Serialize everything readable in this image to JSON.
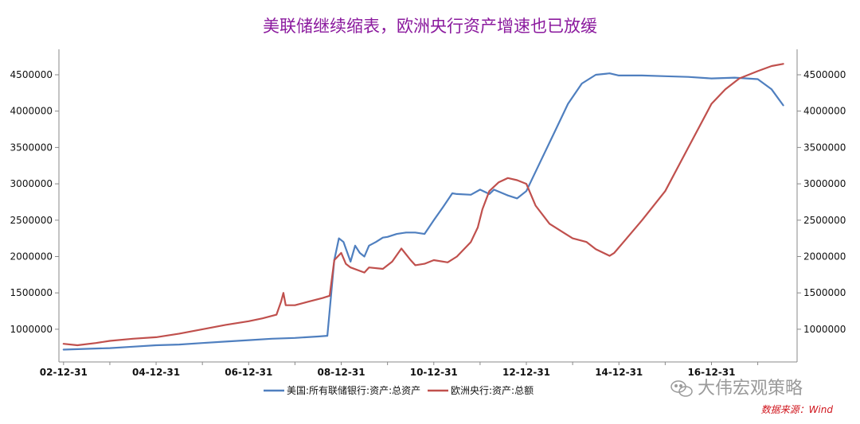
{
  "chart_data": {
    "type": "line",
    "title": "美联储继续缩表，欧洲央行资产增速也已放缓",
    "xlabel": "",
    "ylabel": "",
    "x_ticks": [
      "02-12-31",
      "04-12-31",
      "06-12-31",
      "08-12-31",
      "10-12-31",
      "12-12-31",
      "14-12-31",
      "16-12-31"
    ],
    "y_ticks": [
      1000000,
      1500000,
      2000000,
      2500000,
      3000000,
      3500000,
      4000000,
      4500000
    ],
    "y_tick_labels": [
      "1000000",
      "1500000",
      "2000000",
      "2500000",
      "3000000",
      "3500000",
      "4000000",
      "4500000"
    ],
    "ylim": [
      550000,
      4850000
    ],
    "xlim": [
      2002.9,
      2018.85
    ],
    "grid": false,
    "legend_position": "bottom-center",
    "series": [
      {
        "name": "美国:所有联储银行:资产:总资产",
        "color": "#4f7fbf",
        "x": [
          2003.0,
          2003.5,
          2004.0,
          2004.5,
          2005.0,
          2005.5,
          2006.0,
          2006.5,
          2007.0,
          2007.5,
          2008.0,
          2008.5,
          2008.7,
          2008.85,
          2008.95,
          2009.05,
          2009.2,
          2009.3,
          2009.4,
          2009.5,
          2009.6,
          2009.75,
          2009.9,
          2010.0,
          2010.2,
          2010.4,
          2010.6,
          2010.8,
          2011.0,
          2011.2,
          2011.4,
          2011.5,
          2011.8,
          2012.0,
          2012.2,
          2012.3,
          2012.6,
          2012.8,
          2013.0,
          2013.3,
          2013.6,
          2013.9,
          2014.2,
          2014.5,
          2014.8,
          2015.0,
          2015.5,
          2016.0,
          2016.5,
          2017.0,
          2017.5,
          2018.0,
          2018.3,
          2018.55
        ],
        "values": [
          720000,
          730000,
          740000,
          760000,
          780000,
          790000,
          810000,
          830000,
          850000,
          870000,
          880000,
          900000,
          910000,
          1950000,
          2250000,
          2200000,
          1930000,
          2150000,
          2050000,
          2000000,
          2150000,
          2200000,
          2260000,
          2270000,
          2310000,
          2330000,
          2330000,
          2310000,
          2500000,
          2680000,
          2870000,
          2860000,
          2850000,
          2920000,
          2860000,
          2920000,
          2840000,
          2800000,
          2900000,
          3300000,
          3700000,
          4100000,
          4380000,
          4500000,
          4520000,
          4490000,
          4490000,
          4480000,
          4470000,
          4450000,
          4460000,
          4440000,
          4300000,
          4080000
        ]
      },
      {
        "name": "欧洲央行:资产:总额",
        "color": "#c0504d",
        "x": [
          2003.0,
          2003.3,
          2003.7,
          2004.0,
          2004.5,
          2005.0,
          2005.5,
          2006.0,
          2006.5,
          2007.0,
          2007.3,
          2007.6,
          2007.7,
          2007.75,
          2007.8,
          2008.0,
          2008.3,
          2008.6,
          2008.75,
          2008.85,
          2009.0,
          2009.1,
          2009.2,
          2009.5,
          2009.6,
          2009.9,
          2010.1,
          2010.3,
          2010.5,
          2010.6,
          2010.8,
          2011.0,
          2011.3,
          2011.5,
          2011.8,
          2011.95,
          2012.05,
          2012.2,
          2012.4,
          2012.6,
          2012.8,
          2013.0,
          2013.2,
          2013.5,
          2013.8,
          2014.0,
          2014.3,
          2014.5,
          2014.8,
          2014.9,
          2015.1,
          2015.5,
          2016.0,
          2016.5,
          2017.0,
          2017.3,
          2017.6,
          2018.0,
          2018.3,
          2018.55
        ],
        "values": [
          800000,
          780000,
          810000,
          840000,
          870000,
          890000,
          940000,
          1000000,
          1060000,
          1110000,
          1150000,
          1200000,
          1380000,
          1500000,
          1330000,
          1330000,
          1380000,
          1430000,
          1460000,
          1950000,
          2050000,
          1900000,
          1850000,
          1780000,
          1850000,
          1830000,
          1930000,
          2110000,
          1950000,
          1880000,
          1900000,
          1950000,
          1920000,
          2000000,
          2200000,
          2400000,
          2650000,
          2900000,
          3020000,
          3080000,
          3050000,
          3000000,
          2700000,
          2450000,
          2330000,
          2250000,
          2200000,
          2100000,
          2010000,
          2050000,
          2200000,
          2500000,
          2900000,
          3500000,
          4100000,
          4300000,
          4450000,
          4550000,
          4620000,
          4650000
        ]
      }
    ]
  },
  "watermark": {
    "text": "大伟宏观策略",
    "icon": "wechat-icon"
  },
  "source": "数据来源：Wind"
}
